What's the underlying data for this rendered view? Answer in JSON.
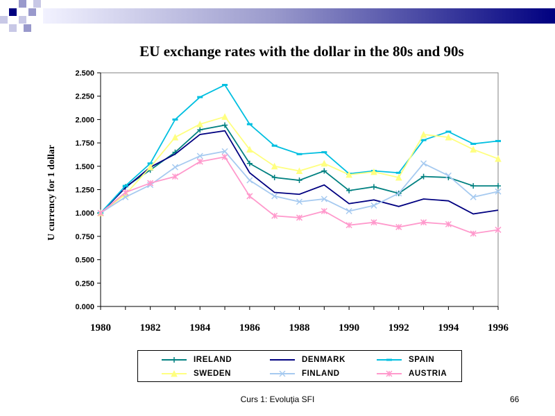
{
  "slide": {
    "footer_text": "Curs 1: Evoluţia SFI",
    "page_number": "66"
  },
  "chart_data": {
    "type": "line",
    "title": "EU exchange rates with the dollar in the 80s and 90s",
    "xlabel": "",
    "ylabel": "U currency for 1 dollar",
    "ylim": [
      0,
      2.5
    ],
    "y_ticks": [
      "0.000",
      "0.250",
      "0.500",
      "0.750",
      "1.000",
      "1.250",
      "1.500",
      "1.750",
      "2.000",
      "2.250",
      "2.500"
    ],
    "xlim": [
      1980,
      1996
    ],
    "x_ticks": [
      "1980",
      "1982",
      "1984",
      "1986",
      "1988",
      "1990",
      "1992",
      "1994",
      "1996"
    ],
    "x": [
      1980,
      1981,
      1982,
      1983,
      1984,
      1985,
      1986,
      1987,
      1988,
      1989,
      1990,
      1991,
      1992,
      1993,
      1994,
      1995,
      1996
    ],
    "grid": false,
    "legend_position": "bottom",
    "series": [
      {
        "name": "IRELAND",
        "color": "#008080",
        "marker": "plus",
        "values": [
          1.0,
          1.28,
          1.46,
          1.65,
          1.89,
          1.94,
          1.53,
          1.38,
          1.35,
          1.45,
          1.24,
          1.28,
          1.21,
          1.39,
          1.38,
          1.29,
          1.29
        ]
      },
      {
        "name": "DENMARK",
        "color": "#000080",
        "marker": "none",
        "values": [
          1.0,
          1.27,
          1.49,
          1.63,
          1.84,
          1.88,
          1.43,
          1.22,
          1.2,
          1.3,
          1.1,
          1.14,
          1.07,
          1.15,
          1.13,
          0.99,
          1.03
        ]
      },
      {
        "name": "SPAIN",
        "color": "#00BFE0",
        "marker": "dash",
        "values": [
          1.0,
          1.29,
          1.53,
          2.0,
          2.24,
          2.37,
          1.95,
          1.72,
          1.63,
          1.65,
          1.42,
          1.45,
          1.43,
          1.78,
          1.87,
          1.74,
          1.77
        ]
      },
      {
        "name": "SWEDEN",
        "color": "#FFFF80",
        "marker": "triangle",
        "values": [
          1.0,
          1.2,
          1.49,
          1.81,
          1.95,
          2.03,
          1.68,
          1.5,
          1.45,
          1.53,
          1.41,
          1.44,
          1.38,
          1.84,
          1.81,
          1.68,
          1.58
        ]
      },
      {
        "name": "FINLAND",
        "color": "#A6CAF0",
        "marker": "x",
        "values": [
          1.0,
          1.17,
          1.3,
          1.49,
          1.61,
          1.66,
          1.35,
          1.18,
          1.12,
          1.15,
          1.02,
          1.08,
          1.21,
          1.53,
          1.4,
          1.17,
          1.23
        ]
      },
      {
        "name": "AUSTRIA",
        "color": "#FF99CC",
        "marker": "star",
        "values": [
          1.0,
          1.22,
          1.32,
          1.39,
          1.55,
          1.6,
          1.18,
          0.97,
          0.95,
          1.02,
          0.87,
          0.9,
          0.85,
          0.9,
          0.88,
          0.78,
          0.82
        ]
      }
    ]
  }
}
